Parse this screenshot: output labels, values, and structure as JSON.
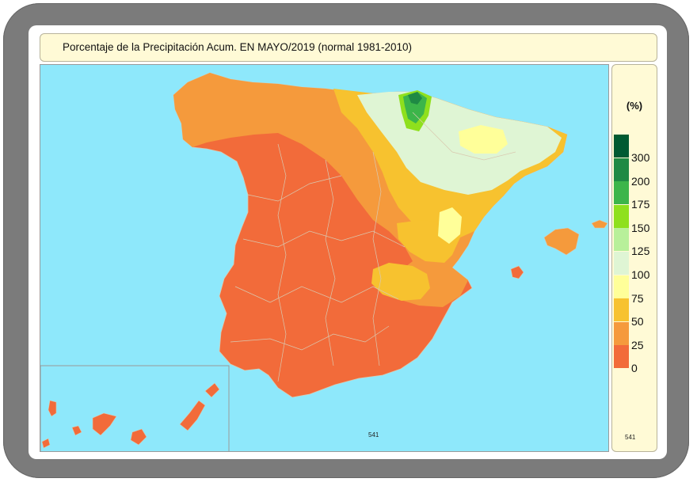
{
  "title": "Porcentaje de la Precipitación Acum. EN  MAYO/2019  (normal 1981-2010)",
  "map": {
    "sea_color": "#8ee8fb",
    "regions": [
      {
        "name": "Península",
        "dominant_class": "0-25"
      },
      {
        "name": "Baleares",
        "dominant_class": "25-50"
      },
      {
        "name": "Canarias",
        "dominant_class": "0-25"
      }
    ],
    "code": "541"
  },
  "legend": {
    "unit": "(%)",
    "classes": [
      {
        "label": "300",
        "color": "#005a32"
      },
      {
        "label": "200",
        "color": "#1f8a44"
      },
      {
        "label": "175",
        "color": "#3cb54a"
      },
      {
        "label": "150",
        "color": "#8fe01d"
      },
      {
        "label": "125",
        "color": "#b8f09a"
      },
      {
        "label": "100",
        "color": "#dff5d4"
      },
      {
        "label": "75",
        "color": "#ffff99"
      },
      {
        "label": "50",
        "color": "#f7c22f"
      },
      {
        "label": "25",
        "color": "#f59a3c"
      },
      {
        "label": "0",
        "color": "#f26b3a"
      }
    ]
  }
}
